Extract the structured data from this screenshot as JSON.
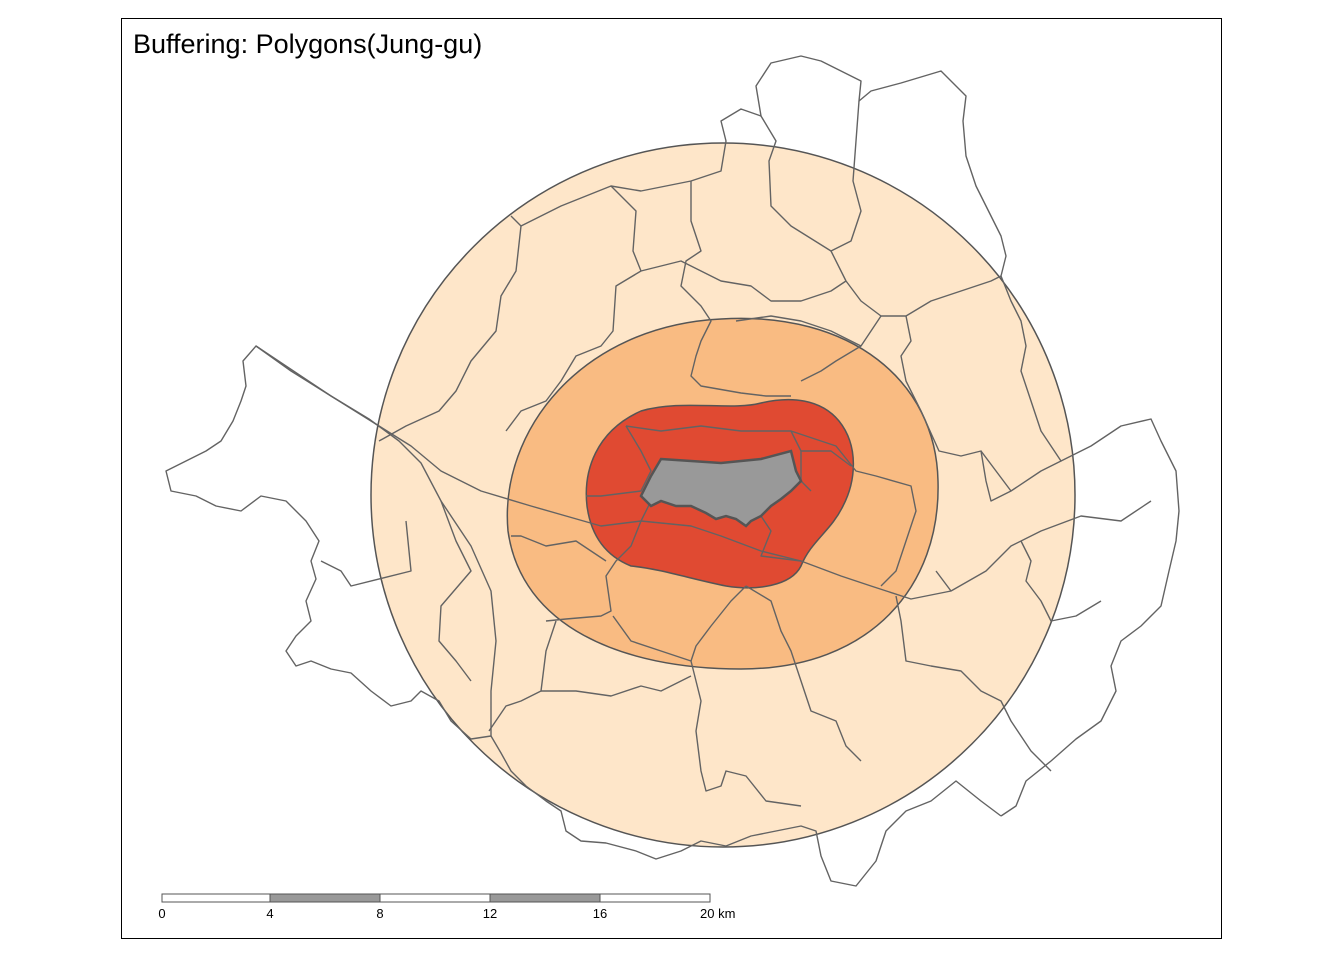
{
  "map": {
    "title": "Buffering: Polygons(Jung-gu)",
    "colors": {
      "buffer_outer": "#fee6c9",
      "buffer_middle": "#f9bb82",
      "buffer_inner": "#e04a32",
      "jung_gu": "#999999",
      "boundary": "#636363",
      "background": "#ffffff"
    },
    "scale_bar": {
      "labels": [
        "0",
        "4",
        "8",
        "12",
        "16",
        "20 km"
      ],
      "fill_colors": [
        "#ffffff",
        "#999999",
        "#ffffff",
        "#999999",
        "#ffffff"
      ]
    }
  }
}
